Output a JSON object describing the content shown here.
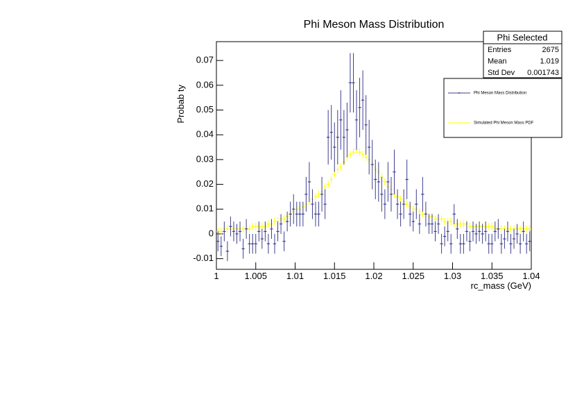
{
  "chart_data": {
    "type": "errorbar",
    "title": "Phi Meson Mass Distribution",
    "x_label": "rc_mass (GeV)",
    "y_label": "Probab  ty",
    "xlim": [
      1,
      1.04
    ],
    "xticks": [
      1,
      1.005,
      1.01,
      1.015,
      1.02,
      1.025,
      1.03,
      1.035,
      1.04
    ],
    "ylim": [
      -0.0143,
      0.0776
    ],
    "yticks": [
      -0.01,
      0,
      0.01,
      0.02,
      0.03,
      0.04,
      0.05,
      0.06,
      0.07
    ],
    "x": [
      1.0002,
      1.0006,
      1.001,
      1.0014,
      1.0018,
      1.0022,
      1.0026,
      1.003,
      1.0034,
      1.0038,
      1.0042,
      1.0046,
      1.005,
      1.0054,
      1.0058,
      1.0062,
      1.0066,
      1.007,
      1.0074,
      1.0078,
      1.0082,
      1.0086,
      1.009,
      1.0094,
      1.0098,
      1.0102,
      1.0106,
      1.011,
      1.0114,
      1.0118,
      1.0122,
      1.0126,
      1.013,
      1.0134,
      1.0138,
      1.0142,
      1.0146,
      1.015,
      1.0154,
      1.0158,
      1.0162,
      1.0166,
      1.017,
      1.0174,
      1.0178,
      1.0182,
      1.0186,
      1.019,
      1.0194,
      1.0198,
      1.0202,
      1.0206,
      1.021,
      1.0214,
      1.0218,
      1.0222,
      1.0226,
      1.023,
      1.0234,
      1.0238,
      1.0242,
      1.0246,
      1.025,
      1.0254,
      1.0258,
      1.0262,
      1.0266,
      1.027,
      1.0274,
      1.0278,
      1.0282,
      1.0286,
      1.029,
      1.0294,
      1.0298,
      1.0302,
      1.0306,
      1.031,
      1.0314,
      1.0318,
      1.0322,
      1.0326,
      1.033,
      1.0334,
      1.0338,
      1.0342,
      1.0346,
      1.035,
      1.0354,
      1.0358,
      1.0362,
      1.0366,
      1.037,
      1.0374,
      1.0378,
      1.0382,
      1.0386,
      1.039,
      1.0394,
      1.0398
    ],
    "series": [
      {
        "name": "Phi Meson Mass Distribution",
        "color": "#3d3d8f",
        "values": [
          -0.003,
          -0.005,
          0.001,
          -0.007,
          0.003,
          0.001,
          0.0,
          0.001,
          -0.006,
          0.002,
          -0.004,
          -0.004,
          -0.004,
          0.001,
          -0.002,
          0.001,
          -0.004,
          0.002,
          -0.004,
          0.001,
          0.004,
          -0.003,
          0.005,
          0.008,
          0.01,
          0.008,
          0.008,
          0.008,
          0.016,
          0.021,
          0.012,
          0.008,
          0.008,
          0.016,
          0.012,
          0.039,
          0.041,
          0.035,
          0.039,
          0.046,
          0.039,
          0.042,
          0.061,
          0.061,
          0.046,
          0.051,
          0.054,
          0.044,
          0.035,
          0.028,
          0.022,
          0.021,
          0.016,
          0.012,
          0.021,
          0.016,
          0.025,
          0.012,
          0.008,
          0.012,
          0.022,
          0.008,
          0.005,
          0.012,
          0.004,
          0.016,
          0.008,
          0.004,
          0.004,
          0.001,
          0.004,
          -0.004,
          -0.001,
          0.001,
          -0.004,
          0.008,
          0.002,
          -0.004,
          -0.004,
          0.001,
          -0.003,
          0.001,
          0.0,
          0.001,
          0.0,
          0.001,
          -0.004,
          -0.004,
          0.001,
          0.002,
          -0.004,
          -0.002,
          0.001,
          -0.004,
          -0.002,
          0.0,
          -0.004,
          0.001,
          -0.004,
          -0.003
        ],
        "errors": [
          0.004,
          0.004,
          0.004,
          0.004,
          0.004,
          0.004,
          0.004,
          0.004,
          0.004,
          0.004,
          0.004,
          0.004,
          0.004,
          0.004,
          0.004,
          0.004,
          0.004,
          0.004,
          0.004,
          0.004,
          0.004,
          0.004,
          0.004,
          0.005,
          0.006,
          0.005,
          0.005,
          0.005,
          0.007,
          0.008,
          0.006,
          0.005,
          0.005,
          0.007,
          0.006,
          0.011,
          0.011,
          0.01,
          0.011,
          0.012,
          0.011,
          0.011,
          0.012,
          0.012,
          0.012,
          0.012,
          0.012,
          0.012,
          0.011,
          0.01,
          0.008,
          0.008,
          0.007,
          0.006,
          0.008,
          0.007,
          0.009,
          0.006,
          0.005,
          0.006,
          0.008,
          0.005,
          0.004,
          0.006,
          0.004,
          0.007,
          0.005,
          0.004,
          0.004,
          0.004,
          0.004,
          0.004,
          0.004,
          0.004,
          0.004,
          0.004,
          0.004,
          0.004,
          0.004,
          0.004,
          0.004,
          0.004,
          0.004,
          0.004,
          0.004,
          0.004,
          0.004,
          0.004,
          0.004,
          0.004,
          0.004,
          0.004,
          0.004,
          0.004,
          0.004,
          0.004,
          0.004,
          0.004,
          0.004,
          0.004
        ]
      },
      {
        "name": "Simulated Phi Meson Mass PDF",
        "color": "#ffff00",
        "values": [
          0.001,
          0.001,
          0.002,
          0.002,
          0.002,
          0.002,
          0.002,
          0.002,
          0.002,
          0.002,
          0.002,
          0.003,
          0.003,
          0.003,
          0.003,
          0.003,
          0.004,
          0.004,
          0.005,
          0.005,
          0.006,
          0.006,
          0.007,
          0.008,
          0.009,
          0.01,
          0.01,
          0.011,
          0.012,
          0.013,
          0.014,
          0.015,
          0.016,
          0.017,
          0.019,
          0.02,
          0.022,
          0.024,
          0.026,
          0.027,
          0.029,
          0.031,
          0.032,
          0.033,
          0.034,
          0.033,
          0.032,
          0.031,
          0.03,
          0.028,
          0.026,
          0.025,
          0.023,
          0.021,
          0.019,
          0.018,
          0.016,
          0.015,
          0.014,
          0.013,
          0.012,
          0.011,
          0.01,
          0.01,
          0.009,
          0.008,
          0.008,
          0.007,
          0.007,
          0.006,
          0.006,
          0.006,
          0.005,
          0.005,
          0.005,
          0.004,
          0.004,
          0.004,
          0.004,
          0.004,
          0.003,
          0.003,
          0.003,
          0.003,
          0.003,
          0.003,
          0.003,
          0.003,
          0.002,
          0.002,
          0.002,
          0.002,
          0.002,
          0.002,
          0.002,
          0.002,
          0.002,
          0.002,
          0.002,
          0.002
        ],
        "errors": [
          0.0015,
          0.0015,
          0.0015,
          0.0015,
          0.0015,
          0.0015,
          0.0015,
          0.0015,
          0.0015,
          0.0015,
          0.0015,
          0.0015,
          0.0015,
          0.0015,
          0.0015,
          0.0015,
          0.0015,
          0.0015,
          0.0015,
          0.0015,
          0.0015,
          0.0015,
          0.0015,
          0.0015,
          0.0015,
          0.0015,
          0.0015,
          0.0015,
          0.0015,
          0.0015,
          0.0015,
          0.0015,
          0.0015,
          0.0015,
          0.0015,
          0.0015,
          0.0015,
          0.0015,
          0.0015,
          0.0015,
          0.0015,
          0.0015,
          0.0015,
          0.0015,
          0.0015,
          0.0015,
          0.0015,
          0.0015,
          0.0015,
          0.0015,
          0.0015,
          0.0015,
          0.0015,
          0.0015,
          0.0015,
          0.0015,
          0.0015,
          0.0015,
          0.0015,
          0.0015,
          0.0015,
          0.0015,
          0.0015,
          0.0015,
          0.0015,
          0.0015,
          0.0015,
          0.0015,
          0.0015,
          0.0015,
          0.0015,
          0.0015,
          0.0015,
          0.0015,
          0.0015,
          0.0015,
          0.0015,
          0.0015,
          0.0015,
          0.0015,
          0.0015,
          0.0015,
          0.0015,
          0.0015,
          0.0015,
          0.0015,
          0.0015,
          0.0015,
          0.0015,
          0.0015,
          0.0015,
          0.0015,
          0.0015,
          0.0015,
          0.0015,
          0.0015,
          0.0015,
          0.0015,
          0.0015,
          0.0015
        ]
      }
    ],
    "stats": {
      "title": "Phi Selected",
      "rows": [
        [
          "Entries",
          "2675"
        ],
        [
          "Mean",
          "1.019"
        ],
        [
          "Std Dev",
          "0.001743"
        ]
      ]
    }
  }
}
